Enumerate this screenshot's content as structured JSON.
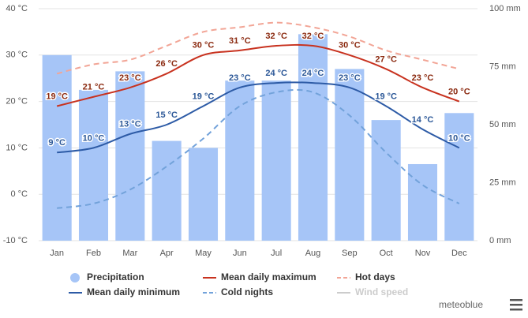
{
  "chart_data": {
    "type": "combo",
    "categories": [
      "Jan",
      "Feb",
      "Mar",
      "Apr",
      "May",
      "Jun",
      "Jul",
      "Aug",
      "Sep",
      "Oct",
      "Nov",
      "Dec"
    ],
    "ylim": [
      -10,
      40
    ],
    "yticks": [
      {
        "value": -10,
        "label": "-10 °C"
      },
      {
        "value": 0,
        "label": "0 °C"
      },
      {
        "value": 10,
        "label": "10 °C"
      },
      {
        "value": 20,
        "label": "20 °C"
      },
      {
        "value": 30,
        "label": "30 °C"
      },
      {
        "value": 40,
        "label": "40 °C"
      }
    ],
    "y2lim": [
      0,
      100
    ],
    "y2ticks": [
      {
        "value": 0,
        "label": "0 mm"
      },
      {
        "value": 25,
        "label": "25 mm"
      },
      {
        "value": 50,
        "label": "50 mm"
      },
      {
        "value": 75,
        "label": "75 mm"
      },
      {
        "value": 100,
        "label": "100 mm"
      }
    ],
    "grid": true,
    "series": [
      {
        "name": "Precipitation",
        "type": "bar",
        "axis": "y2",
        "color": "#a6c5f7",
        "values": [
          80,
          65,
          73,
          43,
          40,
          69,
          69,
          89,
          74,
          52,
          33,
          55
        ]
      },
      {
        "name": "Mean daily maximum",
        "type": "line",
        "color": "#c8321f",
        "label_color": "#8b2a10",
        "values": [
          19,
          21,
          23,
          26,
          30,
          31,
          32,
          32,
          30,
          27,
          23,
          20
        ],
        "value_labels": [
          "19 °C",
          "21 °C",
          "23 °C",
          "26 °C",
          "30 °C",
          "31 °C",
          "32 °C",
          "32 °C",
          "30 °C",
          "27 °C",
          "23 °C",
          "20 °C"
        ]
      },
      {
        "name": "Hot days",
        "type": "line",
        "dashed": true,
        "color": "#f2a596",
        "values": [
          26,
          28,
          29,
          32,
          35,
          36,
          37,
          36,
          34,
          31,
          29,
          27
        ]
      },
      {
        "name": "Mean daily minimum",
        "type": "line",
        "color": "#2d5ba6",
        "label_color": "#2b5797",
        "values": [
          9,
          10,
          13,
          15,
          19,
          23,
          24,
          24,
          23,
          19,
          14,
          10
        ],
        "value_labels": [
          "9 °C",
          "10 °C",
          "13 °C",
          "15 °C",
          "19 °C",
          "23 °C",
          "24 °C",
          "24 °C",
          "23 °C",
          "19 °C",
          "14 °C",
          "10 °C"
        ]
      },
      {
        "name": "Cold nights",
        "type": "line",
        "dashed": true,
        "color": "#72a2da",
        "values": [
          -3,
          -2,
          1,
          6,
          12,
          19,
          22,
          22,
          17,
          9,
          2,
          -2
        ]
      }
    ],
    "hidden_series": [
      {
        "name": "Wind speed",
        "color": "#cccccc"
      }
    ],
    "credit": "meteoblue"
  }
}
